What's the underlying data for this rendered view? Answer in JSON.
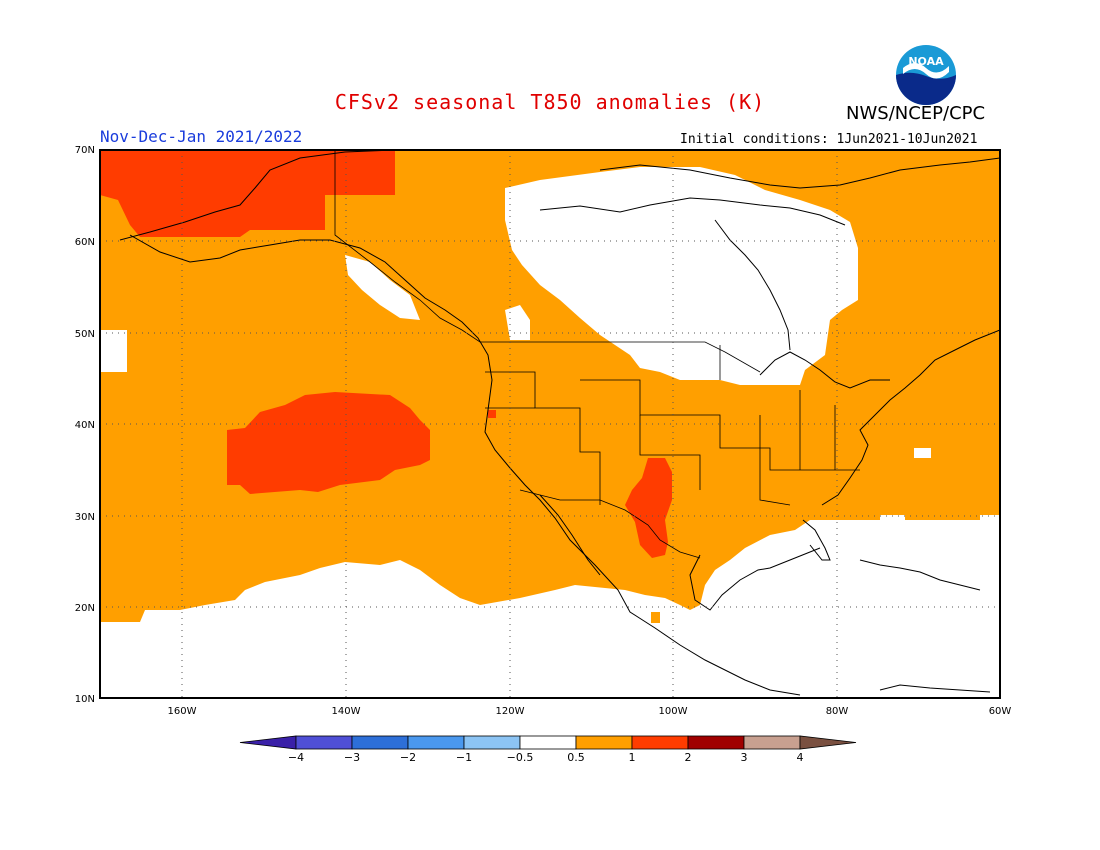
{
  "title": "CFSv2 seasonal T850 anomalies (K)",
  "agency": "NWS/NCEP/CPC",
  "logo_text": "NOAA",
  "period": "Nov-Dec-Jan 2021/2022",
  "initial_conditions": "Initial conditions: 1Jun2021-10Jun2021",
  "lat_labels": [
    "70N",
    "60N",
    "50N",
    "40N",
    "30N",
    "20N",
    "10N"
  ],
  "lon_labels": [
    "160W",
    "140W",
    "120W",
    "100W",
    "80W",
    "60W"
  ],
  "colorbar": {
    "colors": [
      "#3a20a8",
      "#4f4fd6",
      "#2d6fd8",
      "#4a98ee",
      "#8cc4f4",
      "#ffffff",
      "#ff9f00",
      "#ff3c00",
      "#a00000",
      "#c8a090",
      "#7a5040"
    ],
    "labels": [
      "-4",
      "-3",
      "-2",
      "-1",
      "-0.5",
      "0.5",
      "1",
      "2",
      "3",
      "4"
    ]
  }
}
